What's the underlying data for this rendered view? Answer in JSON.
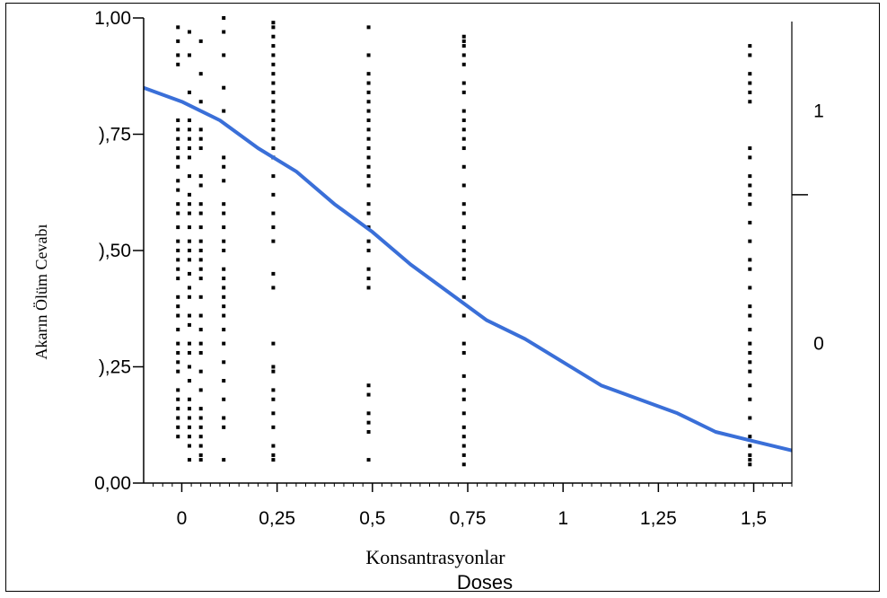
{
  "chart_data": {
    "type": "scatter",
    "xlabel": "Konsantrasyonlar",
    "xlabel_ghost": "Doses",
    "ylabel": "Akarın Ölüm Cevabı",
    "xlim": [
      -0.1,
      1.6
    ],
    "ylim": [
      0,
      1
    ],
    "x_ticks": [
      "0",
      "0,25",
      "0,5",
      "0,75",
      "1",
      "1,25",
      "1,5"
    ],
    "x_tick_values": [
      0,
      0.25,
      0.5,
      0.75,
      1,
      1.25,
      1.5
    ],
    "y_ticks": [
      "0,00",
      "),25",
      "),50",
      "),75",
      "1,00"
    ],
    "y_tick_values": [
      0,
      0.25,
      0.5,
      0.75,
      1
    ],
    "right_ticks": [
      "1",
      "0"
    ],
    "right_tick_values": [
      0.8,
      0.3
    ],
    "right_minor_tick_value": 0.62,
    "colors": {
      "curve": "#3a6fd8",
      "points": "#000000",
      "axis": "#000000"
    },
    "series": [
      {
        "type": "line",
        "x": [
          -0.1,
          0.0,
          0.1,
          0.2,
          0.3,
          0.4,
          0.5,
          0.6,
          0.7,
          0.8,
          0.9,
          1.0,
          1.1,
          1.2,
          1.3,
          1.4,
          1.5,
          1.6
        ],
        "y": [
          0.85,
          0.82,
          0.78,
          0.72,
          0.67,
          0.6,
          0.54,
          0.47,
          0.41,
          0.35,
          0.31,
          0.26,
          0.21,
          0.18,
          0.15,
          0.11,
          0.09,
          0.07
        ]
      },
      {
        "type": "scatter",
        "points": [
          {
            "x": -0.01,
            "y": [
              0.98,
              0.95,
              0.92,
              0.9,
              0.78,
              0.76,
              0.74,
              0.72,
              0.7,
              0.68,
              0.65,
              0.63,
              0.6,
              0.58,
              0.55,
              0.52,
              0.5,
              0.48,
              0.46,
              0.44,
              0.4,
              0.38,
              0.36,
              0.33,
              0.3,
              0.28,
              0.26,
              0.24,
              0.2,
              0.18,
              0.16,
              0.14,
              0.12,
              0.1
            ]
          },
          {
            "x": 0.02,
            "y": [
              0.97,
              0.92,
              0.84,
              0.78,
              0.76,
              0.74,
              0.72,
              0.7,
              0.66,
              0.62,
              0.6,
              0.58,
              0.55,
              0.52,
              0.5,
              0.48,
              0.45,
              0.42,
              0.4,
              0.36,
              0.34,
              0.3,
              0.28,
              0.25,
              0.22,
              0.18,
              0.16,
              0.14,
              0.12,
              0.1,
              0.08,
              0.05
            ]
          },
          {
            "x": 0.05,
            "y": [
              0.95,
              0.88,
              0.82,
              0.76,
              0.74,
              0.72,
              0.66,
              0.64,
              0.6,
              0.58,
              0.55,
              0.52,
              0.5,
              0.48,
              0.46,
              0.44,
              0.4,
              0.36,
              0.33,
              0.3,
              0.28,
              0.24,
              0.2,
              0.16,
              0.14,
              0.12,
              0.1,
              0.08,
              0.06,
              0.05
            ]
          },
          {
            "x": 0.11,
            "y": [
              1.0,
              0.97,
              0.92,
              0.85,
              0.8,
              0.7,
              0.68,
              0.65,
              0.6,
              0.58,
              0.55,
              0.52,
              0.5,
              0.46,
              0.44,
              0.42,
              0.4,
              0.38,
              0.36,
              0.33,
              0.3,
              0.26,
              0.22,
              0.18,
              0.14,
              0.12,
              0.05
            ]
          },
          {
            "x": 0.24,
            "y": [
              0.99,
              0.98,
              0.96,
              0.94,
              0.92,
              0.9,
              0.88,
              0.86,
              0.84,
              0.82,
              0.8,
              0.78,
              0.76,
              0.74,
              0.72,
              0.7,
              0.66,
              0.62,
              0.58,
              0.55,
              0.52,
              0.45,
              0.42,
              0.3,
              0.25,
              0.24,
              0.2,
              0.18,
              0.15,
              0.12,
              0.08,
              0.06,
              0.05
            ]
          },
          {
            "x": 0.49,
            "y": [
              0.98,
              0.92,
              0.88,
              0.86,
              0.84,
              0.82,
              0.8,
              0.78,
              0.76,
              0.74,
              0.72,
              0.7,
              0.68,
              0.66,
              0.64,
              0.6,
              0.58,
              0.55,
              0.52,
              0.5,
              0.46,
              0.44,
              0.42,
              0.21,
              0.19,
              0.15,
              0.13,
              0.11,
              0.05
            ]
          },
          {
            "x": 0.74,
            "y": [
              0.96,
              0.95,
              0.94,
              0.92,
              0.9,
              0.86,
              0.84,
              0.8,
              0.78,
              0.76,
              0.74,
              0.72,
              0.68,
              0.64,
              0.6,
              0.58,
              0.55,
              0.52,
              0.5,
              0.48,
              0.46,
              0.44,
              0.4,
              0.36,
              0.3,
              0.28,
              0.23,
              0.2,
              0.18,
              0.15,
              0.12,
              0.1,
              0.08,
              0.06,
              0.04
            ]
          },
          {
            "x": 1.49,
            "y": [
              0.94,
              0.92,
              0.88,
              0.86,
              0.84,
              0.82,
              0.72,
              0.7,
              0.66,
              0.64,
              0.62,
              0.6,
              0.56,
              0.52,
              0.48,
              0.46,
              0.42,
              0.38,
              0.36,
              0.33,
              0.3,
              0.28,
              0.26,
              0.24,
              0.21,
              0.18,
              0.14,
              0.1,
              0.08,
              0.06,
              0.05,
              0.04
            ]
          }
        ]
      }
    ]
  }
}
